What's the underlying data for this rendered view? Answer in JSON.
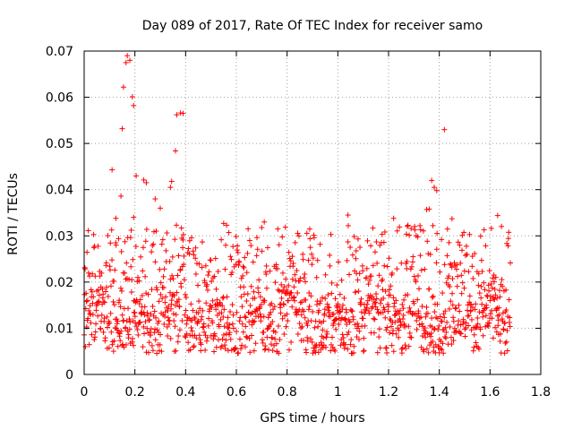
{
  "chart_data": {
    "type": "scatter",
    "title": "Day 089 of 2017, Rate Of TEC Index for receiver samo",
    "xlabel": "GPS time / hours",
    "ylabel": "ROTI / TECUs",
    "xlim": [
      0,
      1.8
    ],
    "ylim": [
      0,
      0.07
    ],
    "xticks": [
      0,
      0.2,
      0.4,
      0.6,
      0.8,
      1,
      1.2,
      1.4,
      1.6,
      1.8
    ],
    "xtick_labels": [
      "0",
      "0.2",
      "0.4",
      "0.6",
      "0.8",
      "1",
      "1.2",
      "1.4",
      "1.6",
      "1.8"
    ],
    "yticks": [
      0,
      0.01,
      0.02,
      0.03,
      0.04,
      0.05,
      0.06,
      0.07
    ],
    "ytick_labels": [
      "0",
      "0.01",
      "0.02",
      "0.03",
      "0.04",
      "0.05",
      "0.06",
      "0.07"
    ],
    "grid": true,
    "marker": "+",
    "marker_color": "#ff0000",
    "x_data_range": [
      0,
      1.68
    ],
    "notable_points": [
      {
        "x": 0.17,
        "y": 0.069
      },
      {
        "x": 0.165,
        "y": 0.0675
      },
      {
        "x": 0.18,
        "y": 0.068
      },
      {
        "x": 0.155,
        "y": 0.0622
      },
      {
        "x": 0.19,
        "y": 0.0601
      },
      {
        "x": 0.195,
        "y": 0.0582
      },
      {
        "x": 0.15,
        "y": 0.0532
      },
      {
        "x": 0.38,
        "y": 0.0566
      },
      {
        "x": 0.39,
        "y": 0.0565
      },
      {
        "x": 0.365,
        "y": 0.0562
      },
      {
        "x": 0.36,
        "y": 0.0484
      },
      {
        "x": 0.11,
        "y": 0.0443
      },
      {
        "x": 0.205,
        "y": 0.043
      },
      {
        "x": 0.345,
        "y": 0.0418
      },
      {
        "x": 0.34,
        "y": 0.0405
      },
      {
        "x": 0.145,
        "y": 0.0386
      },
      {
        "x": 1.42,
        "y": 0.053
      },
      {
        "x": 1.37,
        "y": 0.042
      },
      {
        "x": 1.38,
        "y": 0.0405
      },
      {
        "x": 1.39,
        "y": 0.0398
      },
      {
        "x": 1.36,
        "y": 0.0358
      },
      {
        "x": 1.35,
        "y": 0.0357
      },
      {
        "x": 0.195,
        "y": 0.034
      },
      {
        "x": 0.125,
        "y": 0.0338
      },
      {
        "x": 0.55,
        "y": 0.0327
      },
      {
        "x": 0.71,
        "y": 0.033
      },
      {
        "x": 1.04,
        "y": 0.0345
      },
      {
        "x": 1.22,
        "y": 0.0338
      },
      {
        "x": 1.63,
        "y": 0.0344
      },
      {
        "x": 1.45,
        "y": 0.0337
      },
      {
        "x": 0.28,
        "y": 0.038
      },
      {
        "x": 0.3,
        "y": 0.036
      },
      {
        "x": 0.245,
        "y": 0.0415
      },
      {
        "x": 0.235,
        "y": 0.0421
      }
    ],
    "bulk": {
      "y_center": 0.0125,
      "y_spread": 0.0045,
      "y_min": 0.0045,
      "upper_band": 0.024
    }
  }
}
